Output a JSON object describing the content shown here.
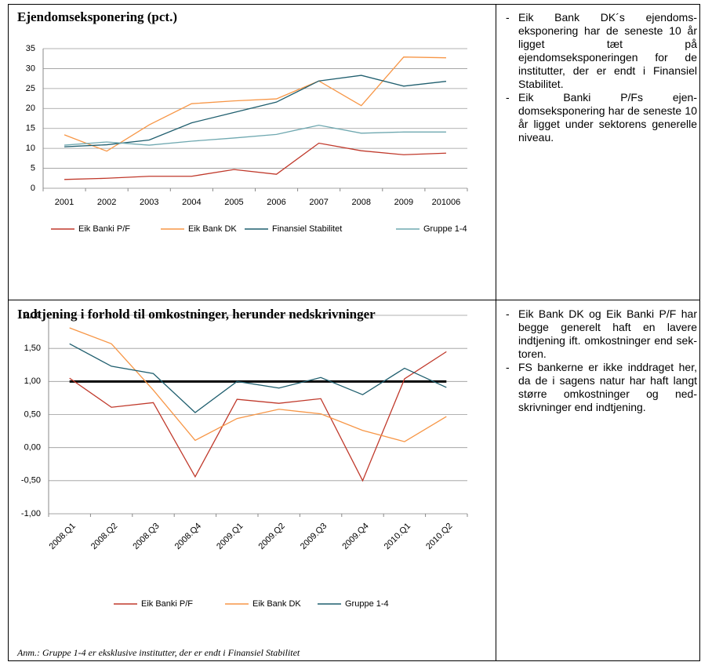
{
  "chart_data": [
    {
      "type": "line",
      "title": "Ejendomseksponering (pct.)",
      "categories": [
        "2001",
        "2002",
        "2003",
        "2004",
        "2005",
        "2006",
        "2007",
        "2008",
        "2009",
        "201006"
      ],
      "ylim": [
        0,
        35
      ],
      "yticks": [
        0,
        5,
        10,
        15,
        20,
        25,
        30,
        35
      ],
      "grid": true,
      "series": [
        {
          "name": "Eik Banki P/F",
          "color": "#c0392b",
          "values": [
            2.2,
            2.5,
            3.0,
            3.0,
            4.7,
            3.5,
            11.3,
            9.4,
            8.4,
            8.8
          ]
        },
        {
          "name": "Eik Bank DK",
          "color": "#f79646",
          "values": [
            13.4,
            9.3,
            15.9,
            21.2,
            21.9,
            22.4,
            26.9,
            20.7,
            32.9,
            32.7
          ]
        },
        {
          "name": "Finansiel Stabilitet",
          "color": "#1f5e6e",
          "values": [
            10.4,
            10.9,
            12.1,
            16.4,
            19.0,
            21.6,
            26.9,
            28.3,
            25.6,
            26.8
          ]
        },
        {
          "name": "Gruppe 1-4",
          "color": "#6fa8b0",
          "values": [
            10.8,
            11.6,
            10.8,
            11.8,
            12.6,
            13.5,
            15.8,
            13.8,
            14.1,
            14.1
          ]
        }
      ]
    },
    {
      "type": "line",
      "title": "Indtjening i forhold til omkostninger, herunder nedskrivnin­ger",
      "categories": [
        "2008.Q1",
        "2008.Q2",
        "2008.Q3",
        "2008.Q4",
        "2009.Q1",
        "2009.Q2",
        "2009.Q3",
        "2009.Q4",
        "2010.Q1",
        "2010.Q2"
      ],
      "ylim": [
        -1,
        2
      ],
      "yticks": [
        {
          "value": -1,
          "label": "-1,00"
        },
        {
          "value": -0.5,
          "label": "-0,50"
        },
        {
          "value": 0,
          "label": "0,00"
        },
        {
          "value": 0.5,
          "label": "0,50"
        },
        {
          "value": 1,
          "label": "1,00"
        },
        {
          "value": 1.5,
          "label": "1,50"
        },
        {
          "value": 2,
          "label": "2,00"
        }
      ],
      "grid": true,
      "reference_line": 1,
      "series": [
        {
          "name": "Eik Banki P/F",
          "color": "#c0392b",
          "values": [
            1.05,
            0.61,
            0.68,
            -0.44,
            0.73,
            0.67,
            0.74,
            -0.5,
            1.04,
            1.45
          ]
        },
        {
          "name": "Eik Bank DK",
          "color": "#f79646",
          "values": [
            1.81,
            1.57,
            0.87,
            0.11,
            0.44,
            0.58,
            0.51,
            0.26,
            0.09,
            0.47
          ]
        },
        {
          "name": "Gruppe 1-4",
          "color": "#1f5e6e",
          "values": [
            1.57,
            1.23,
            1.12,
            0.53,
            1.0,
            0.9,
            1.06,
            0.8,
            1.2,
            0.91
          ]
        }
      ],
      "note": "Anm.: Gruppe 1-4 er eksklusive institutter, der er endt i Finansiel Stabilitet"
    }
  ],
  "bullets": [
    [
      "Eik Bank DK´s ejendoms­eksponering har de sene­ste 10 år ligget tæt på ejendomseksponeringen for de institutter, der er endt i Finansiel Stabilitet.",
      "Eik Banki P/Fs ejen­domseksponering har de seneste 10 år ligget under sektorens generelle ni­veau."
    ],
    [
      "Eik Bank DK og Eik Banki P/F har begge generelt haft en lavere indtjening ift. omkostninger end sek­toren.",
      "FS bankerne er ikke ind­draget her, da de i sagens natur har haft langt større omkostninger og ned­skrivninger end indtjening."
    ]
  ],
  "bullet_mark": "-"
}
